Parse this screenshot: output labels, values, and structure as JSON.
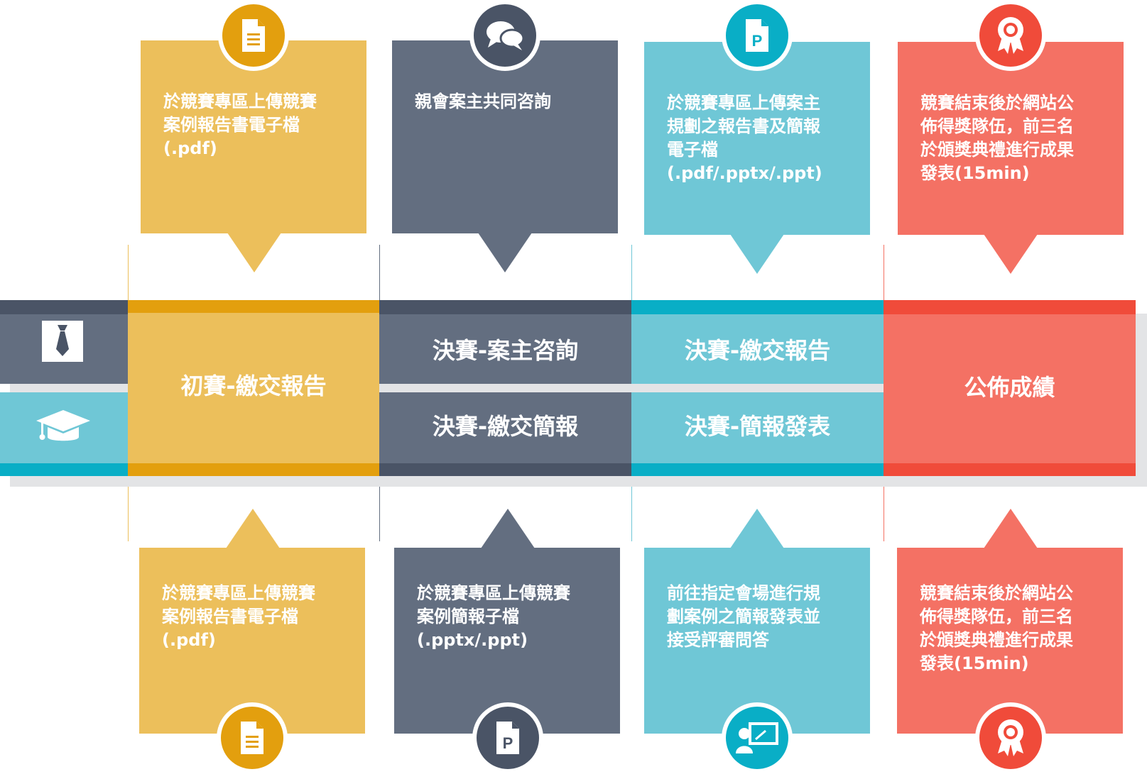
{
  "colors": {
    "yellow": "#ecbf5b",
    "yellow_dark": "#e39f0e",
    "slate": "#636e80",
    "slate_dark": "#4a5466",
    "teal": "#6fc7d6",
    "teal_dark": "#09aec6",
    "coral": "#f47164",
    "coral_dark": "#f04b3a"
  },
  "top_boxes": [
    {
      "icon": "document-icon",
      "text": "於競賽專區上傳競賽\n案例報告書電子檔\n(.pdf)"
    },
    {
      "icon": "chat-bubbles-icon",
      "text": "親會案主共同咨詢"
    },
    {
      "icon": "ppt-file-icon",
      "text": "於競賽專區上傳案主\n規劃之報告書及簡報\n電子檔\n(.pdf/.pptx/.ppt)"
    },
    {
      "icon": "award-ribbon-icon",
      "text": "競賽結束後於網站公\n佈得獎隊伍，前三名\n於頒獎典禮進行成果\n發表(15min)"
    }
  ],
  "stages": {
    "preliminary": "初賽-繳交報告",
    "final_consult": "決賽-案主咨詢",
    "final_slides": "決賽-繳交簡報",
    "final_report": "決賽-繳交報告",
    "final_present": "決賽-簡報發表",
    "results": "公佈成績"
  },
  "legend": {
    "top_icon": "necktie-icon",
    "bottom_icon": "graduation-cap-icon"
  },
  "bottom_boxes": [
    {
      "icon": "document-icon",
      "text": "於競賽專區上傳競賽\n案例報告書電子檔\n(.pdf)"
    },
    {
      "icon": "ppt-file-icon",
      "text": "於競賽專區上傳競賽\n案例簡報子檔\n(.pptx/.ppt)"
    },
    {
      "icon": "presentation-icon",
      "text": "前往指定會場進行規\n劃案例之簡報發表並\n接受評審問答"
    },
    {
      "icon": "award-ribbon-icon",
      "text": "競賽結束後於網站公\n佈得獎隊伍，前三名\n於頒獎典禮進行成果\n發表(15min)"
    }
  ]
}
